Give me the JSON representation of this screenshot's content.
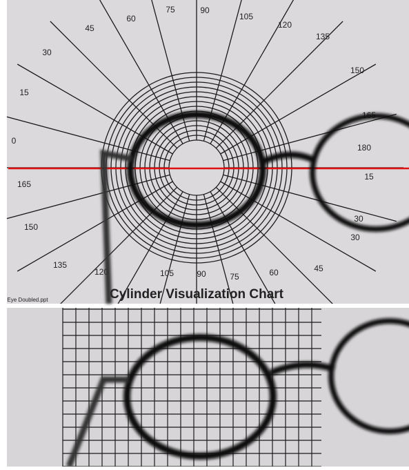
{
  "chart": {
    "title": "Cylinder Visualization Chart",
    "footer": "Eye Doubled.ppt",
    "labels": [
      "0",
      "15",
      "30",
      "45",
      "60",
      "75",
      "90",
      "105",
      "120",
      "135",
      "150",
      "165",
      "180",
      "165",
      "150",
      "135",
      "120",
      "105",
      "90",
      "75",
      "60",
      "45",
      "30",
      "30",
      "15"
    ]
  }
}
